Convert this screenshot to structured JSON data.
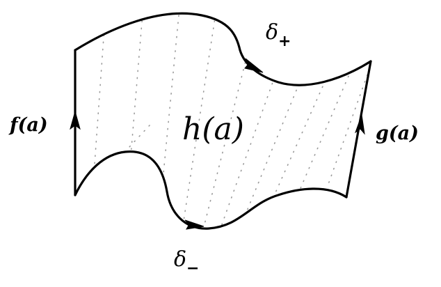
{
  "diagram": {
    "labels": {
      "left_edge": "f(a)",
      "right_edge": "g(a)",
      "center": "h(a)",
      "top_curve_symbol": "δ",
      "top_curve_subscript": "+",
      "bottom_curve_symbol": "δ",
      "bottom_curve_subscript": "−"
    },
    "colors": {
      "stroke": "#000000",
      "fill_dots": "#9a9a9a",
      "background": "#ffffff"
    }
  }
}
